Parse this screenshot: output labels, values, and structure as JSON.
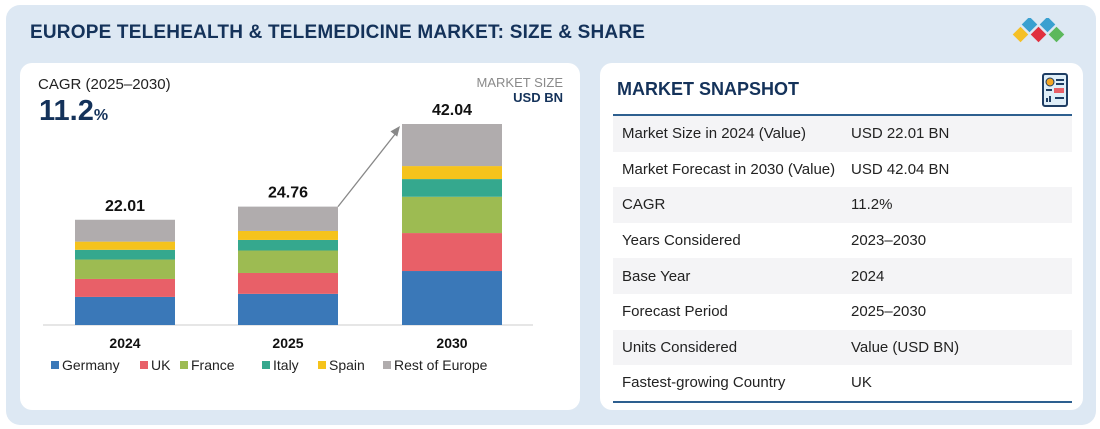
{
  "header": {
    "title": "EUROPE TELEHEALTH & TELEMEDICINE MARKET: SIZE & SHARE",
    "logo_colors": [
      "#3aa0d0",
      "#3aa0d0",
      "#f5c026",
      "#e0303e",
      "#5cb85c"
    ]
  },
  "left_panel": {
    "cagr_label": "CAGR (2025–2030)",
    "cagr_value": "11.2",
    "cagr_unit": "%",
    "unit_label": "MARKET SIZE",
    "unit_value": "USD BN"
  },
  "chart_data": {
    "type": "bar",
    "stacked": true,
    "categories": [
      "2024",
      "2025",
      "2030"
    ],
    "totals": [
      "22.01",
      "24.76",
      "42.04"
    ],
    "series": [
      {
        "name": "Germany",
        "color": "#3a78b8",
        "values": [
          5.87,
          6.51,
          11.29
        ]
      },
      {
        "name": "UK",
        "color": "#e86068",
        "values": [
          3.76,
          4.37,
          7.94
        ]
      },
      {
        "name": "France",
        "color": "#9dbb52",
        "values": [
          4.06,
          4.7,
          7.59
        ]
      },
      {
        "name": "Italy",
        "color": "#35a88e",
        "values": [
          2.04,
          2.21,
          3.7
        ]
      },
      {
        "name": "Spain",
        "color": "#f5c31c",
        "values": [
          1.71,
          1.88,
          2.72
        ]
      },
      {
        "name": "Rest of Europe",
        "color": "#b0acad",
        "values": [
          4.57,
          5.09,
          8.8
        ]
      }
    ],
    "ylim": [
      0,
      42.04
    ],
    "grid": false,
    "legend": "bottom"
  },
  "snapshot": {
    "title": "MARKET SNAPSHOT",
    "rows": [
      {
        "k": "Market Size in 2024 (Value)",
        "v": "USD 22.01 BN"
      },
      {
        "k": "Market Forecast in 2030 (Value)",
        "v": "USD 42.04 BN"
      },
      {
        "k": "CAGR",
        "v": "11.2%"
      },
      {
        "k": "Years Considered",
        "v": "2023–2030"
      },
      {
        "k": "Base Year",
        "v": "2024"
      },
      {
        "k": "Forecast Period",
        "v": "2025–2030"
      },
      {
        "k": "Units Considered",
        "v": "Value (USD BN)"
      },
      {
        "k": "Fastest-growing Country",
        "v": "UK"
      }
    ]
  }
}
